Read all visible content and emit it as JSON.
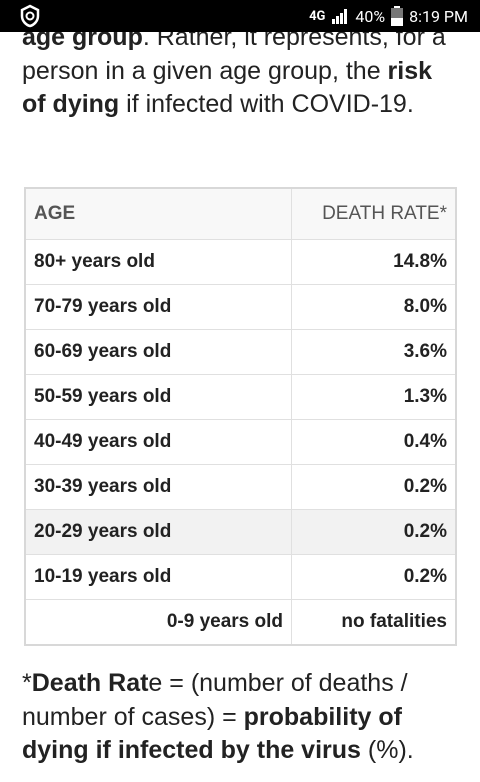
{
  "status_bar": {
    "network": "4G",
    "battery": "40%",
    "time": "8:19 PM"
  },
  "intro": [
    {
      "text": "age group",
      "bold": true
    },
    {
      "text": ". Rather, it represents, for a person in a given age group, the ",
      "bold": false
    },
    {
      "text": "risk of dying",
      "bold": true
    },
    {
      "text": " if infected with COVID-19.",
      "bold": false
    }
  ],
  "table": {
    "header": [
      "AGE",
      "DEATH RATE*"
    ],
    "rows": [
      [
        "80+ years old",
        "14.8%"
      ],
      [
        "70-79 years old",
        "8.0%"
      ],
      [
        "60-69 years old",
        "3.6%"
      ],
      [
        "50-59 years old",
        "1.3%"
      ],
      [
        "40-49 years old",
        "0.4%"
      ],
      [
        "30-39 years old",
        "0.2%"
      ],
      [
        "20-29 years old",
        "0.2%"
      ],
      [
        "10-19 years old",
        "0.2%"
      ],
      [
        "0-9 years old",
        "no fatalities"
      ]
    ]
  },
  "footnote": [
    {
      "text": "*",
      "bold": false
    },
    {
      "text": "Death Rat",
      "bold": true
    },
    {
      "text": "e = (number of deaths / number of cases) = ",
      "bold": false
    },
    {
      "text": "probability of dying if infected by the virus",
      "bold": true
    },
    {
      "text": " (%).",
      "bold": false
    }
  ]
}
